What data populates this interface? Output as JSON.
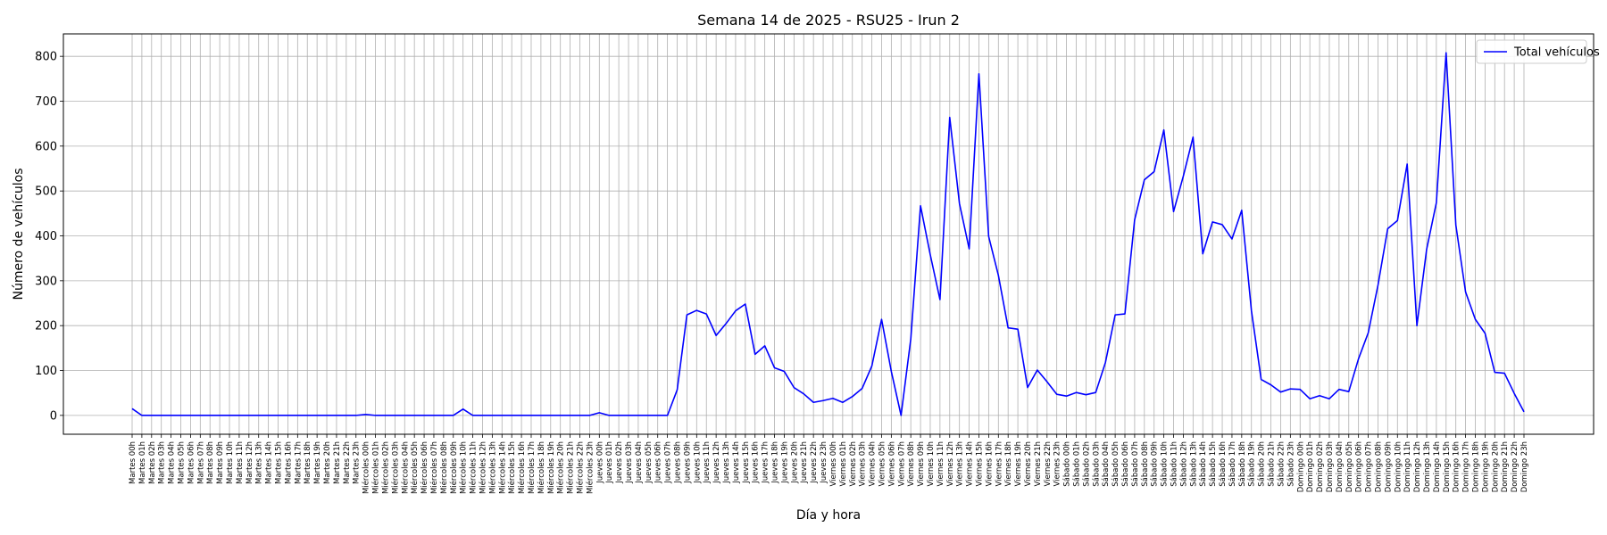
{
  "chart_data": {
    "type": "line",
    "title": "Semana 14 de 2025 - RSU25 - Irun 2",
    "xlabel": "Día y hora",
    "ylabel": "Número de vehículos",
    "ylim": [
      -42,
      850
    ],
    "yticks": [
      0,
      100,
      200,
      300,
      400,
      500,
      600,
      700,
      800
    ],
    "grid": true,
    "legend_position": "top-right",
    "categories": [
      "Martes 00h",
      "Martes 01h",
      "Martes 02h",
      "Martes 03h",
      "Martes 04h",
      "Martes 05h",
      "Martes 06h",
      "Martes 07h",
      "Martes 08h",
      "Martes 09h",
      "Martes 10h",
      "Martes 11h",
      "Martes 12h",
      "Martes 13h",
      "Martes 14h",
      "Martes 15h",
      "Martes 16h",
      "Martes 17h",
      "Martes 18h",
      "Martes 19h",
      "Martes 20h",
      "Martes 21h",
      "Martes 22h",
      "Martes 23h",
      "Miércoles 00h",
      "Miércoles 01h",
      "Miércoles 02h",
      "Miércoles 03h",
      "Miércoles 04h",
      "Miércoles 05h",
      "Miércoles 06h",
      "Miércoles 07h",
      "Miércoles 08h",
      "Miércoles 09h",
      "Miércoles 10h",
      "Miércoles 11h",
      "Miércoles 12h",
      "Miércoles 13h",
      "Miércoles 14h",
      "Miércoles 15h",
      "Miércoles 16h",
      "Miércoles 17h",
      "Miércoles 18h",
      "Miércoles 19h",
      "Miércoles 20h",
      "Miércoles 21h",
      "Miércoles 22h",
      "Miércoles 23h",
      "Jueves 00h",
      "Jueves 01h",
      "Jueves 02h",
      "Jueves 03h",
      "Jueves 04h",
      "Jueves 05h",
      "Jueves 06h",
      "Jueves 07h",
      "Jueves 08h",
      "Jueves 09h",
      "Jueves 10h",
      "Jueves 11h",
      "Jueves 12h",
      "Jueves 13h",
      "Jueves 14h",
      "Jueves 15h",
      "Jueves 16h",
      "Jueves 17h",
      "Jueves 18h",
      "Jueves 19h",
      "Jueves 20h",
      "Jueves 21h",
      "Jueves 22h",
      "Jueves 23h",
      "Viernes 00h",
      "Viernes 01h",
      "Viernes 02h",
      "Viernes 03h",
      "Viernes 04h",
      "Viernes 05h",
      "Viernes 06h",
      "Viernes 07h",
      "Viernes 08h",
      "Viernes 09h",
      "Viernes 10h",
      "Viernes 11h",
      "Viernes 12h",
      "Viernes 13h",
      "Viernes 14h",
      "Viernes 15h",
      "Viernes 16h",
      "Viernes 17h",
      "Viernes 18h",
      "Viernes 19h",
      "Viernes 20h",
      "Viernes 21h",
      "Viernes 22h",
      "Viernes 23h",
      "Sábado 00h",
      "Sábado 01h",
      "Sábado 02h",
      "Sábado 03h",
      "Sábado 04h",
      "Sábado 05h",
      "Sábado 06h",
      "Sábado 07h",
      "Sábado 08h",
      "Sábado 09h",
      "Sábado 10h",
      "Sábado 11h",
      "Sábado 12h",
      "Sábado 13h",
      "Sábado 14h",
      "Sábado 15h",
      "Sábado 16h",
      "Sábado 17h",
      "Sábado 18h",
      "Sábado 19h",
      "Sábado 20h",
      "Sábado 21h",
      "Sábado 22h",
      "Sábado 23h",
      "Domingo 00h",
      "Domingo 01h",
      "Domingo 02h",
      "Domingo 03h",
      "Domingo 04h",
      "Domingo 05h",
      "Domingo 06h",
      "Domingo 07h",
      "Domingo 08h",
      "Domingo 09h",
      "Domingo 10h",
      "Domingo 11h",
      "Domingo 12h",
      "Domingo 13h",
      "Domingo 14h",
      "Domingo 15h",
      "Domingo 16h",
      "Domingo 17h",
      "Domingo 18h",
      "Domingo 19h",
      "Domingo 20h",
      "Domingo 21h",
      "Domingo 22h",
      "Domingo 23h"
    ],
    "series": [
      {
        "name": "Total vehículos",
        "color": "#0000ff",
        "values": [
          15,
          0,
          0,
          0,
          0,
          0,
          0,
          0,
          0,
          0,
          0,
          0,
          0,
          0,
          0,
          0,
          0,
          0,
          0,
          0,
          0,
          0,
          0,
          0,
          2,
          0,
          0,
          0,
          0,
          0,
          0,
          0,
          0,
          0,
          14,
          0,
          0,
          0,
          0,
          0,
          0,
          0,
          0,
          0,
          0,
          0,
          0,
          0,
          6,
          0,
          0,
          0,
          0,
          0,
          0,
          0,
          57,
          224,
          234,
          226,
          178,
          204,
          233,
          248,
          136,
          155,
          106,
          98,
          62,
          48,
          29,
          33,
          38,
          29,
          42,
          60,
          110,
          214,
          98,
          0,
          170,
          467,
          358,
          258,
          664,
          472,
          371,
          761,
          399,
          312,
          195,
          192,
          62,
          101,
          75,
          47,
          43,
          51,
          46,
          51,
          118,
          224,
          226,
          436,
          525,
          543,
          636,
          454,
          533,
          620,
          360,
          431,
          425,
          393,
          457,
          233,
          80,
          68,
          52,
          59,
          58,
          37,
          44,
          37,
          58,
          53,
          126,
          184,
          290,
          416,
          434,
          560,
          200,
          370,
          474,
          808,
          424,
          275,
          214,
          183,
          96,
          94,
          49,
          8
        ]
      }
    ]
  }
}
